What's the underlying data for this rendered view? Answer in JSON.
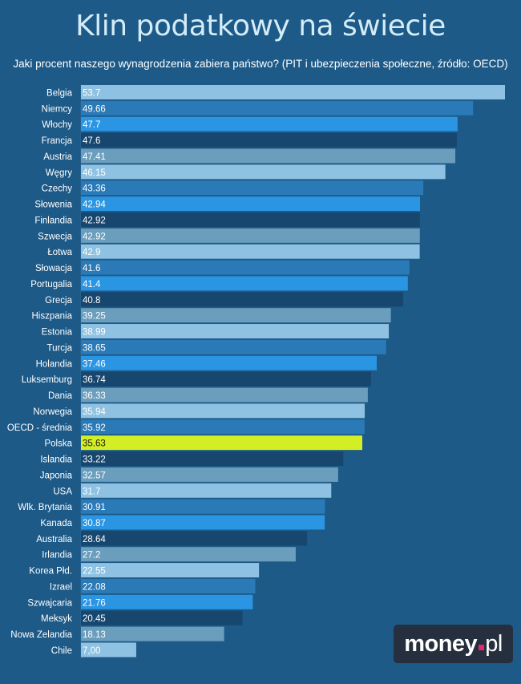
{
  "header": {
    "title": "Klin podatkowy na świecie",
    "subtitle": "Jaki procent naszego wynagrodzenia zabiera państwo? (PIT i ubezpieczenia społeczne, źródło: OECD)"
  },
  "logo": {
    "main": "money",
    "suffix": "pl",
    "dot_color": "#e5266e"
  },
  "colors": {
    "background": "#1d5a88",
    "palette": [
      "#8fc2e2",
      "#2a7ab8",
      "#2a95e2",
      "#17466e",
      "#6b9dbd"
    ],
    "highlight": "#d4ee26"
  },
  "chart_data": {
    "type": "bar",
    "orientation": "horizontal",
    "title": "Klin podatkowy na świecie",
    "subtitle": "Jaki procent naszego wynagrodzenia zabiera państwo? (PIT i ubezpieczenia społeczne, źródło: OECD)",
    "xlabel": "",
    "ylabel": "",
    "xlim": [
      0,
      53.7
    ],
    "grid": false,
    "highlight_category": "Polska",
    "categories": [
      "Belgia",
      "Niemcy",
      "Włochy",
      "Francja",
      "Austria",
      "Węgry",
      "Czechy",
      "Słowenia",
      "Finlandia",
      "Szwecja",
      "Łotwa",
      "Słowacja",
      "Portugalia",
      "Grecja",
      "Hiszpania",
      "Estonia",
      "Turcja",
      "Holandia",
      "Luksemburg",
      "Dania",
      "Norwegia",
      "OECD - średnia",
      "Polska",
      "Islandia",
      "Japonia",
      "USA",
      "Wlk. Brytania",
      "Kanada",
      "Australia",
      "Irlandia",
      "Korea Płd.",
      "Izrael",
      "Szwajcaria",
      "Meksyk",
      "Nowa Zelandia",
      "Chile"
    ],
    "values": [
      53.7,
      49.66,
      47.7,
      47.6,
      47.41,
      46.15,
      43.36,
      42.94,
      42.92,
      42.92,
      42.9,
      41.6,
      41.4,
      40.8,
      39.25,
      38.99,
      38.65,
      37.46,
      36.74,
      36.33,
      35.94,
      35.92,
      35.63,
      33.22,
      32.57,
      31.7,
      30.91,
      30.87,
      28.64,
      27.2,
      22.55,
      22.08,
      21.76,
      20.45,
      18.13,
      7.0
    ],
    "value_labels": [
      "53.7",
      "49.66",
      "47.7",
      "47.6",
      "47.41",
      "46.15",
      "43.36",
      "42.94",
      "42.92",
      "42.92",
      "42.9",
      "41.6",
      "41.4",
      "40.8",
      "39.25",
      "38.99",
      "38.65",
      "37.46",
      "36.74",
      "36.33",
      "35.94",
      "35.92",
      "35.63",
      "33.22",
      "32.57",
      "31.7",
      "30.91",
      "30.87",
      "28.64",
      "27.2",
      "22.55",
      "22.08",
      "21.76",
      "20.45",
      "18.13",
      "7,00"
    ]
  }
}
